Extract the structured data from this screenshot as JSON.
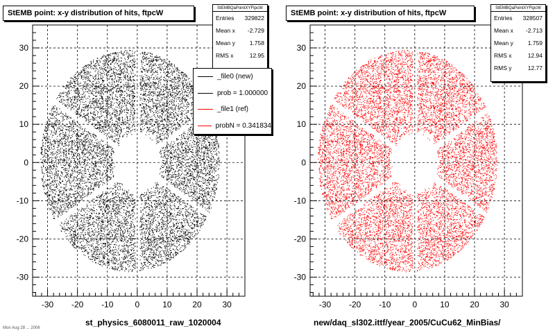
{
  "page_footer": "Mon Aug 28 ... 2006",
  "chart_data": [
    {
      "type": "scatter",
      "title": "StEMB point: x-y distribution of hits, ftpcW",
      "xlabel": "st_physics_6080011_raw_1020004",
      "ylabel": "",
      "xlim": [
        -35,
        36
      ],
      "ylim": [
        -35,
        36
      ],
      "xticks": [
        -30,
        -20,
        -10,
        0,
        10,
        20,
        30
      ],
      "yticks": [
        -30,
        -20,
        -10,
        0,
        10,
        20,
        30
      ],
      "grid": true,
      "color": "#000000",
      "distribution": {
        "outer_radius_x": 30,
        "outer_radius_y": 29,
        "inner_radius": 7.5,
        "sector_gaps_deg": [
          90,
          150,
          210,
          270,
          330,
          30
        ]
      },
      "stats": {
        "name": "StEMBQaPointXYFtpcW",
        "entries_label": "Entries",
        "entries": "329822",
        "mean_x_label": "Mean x",
        "mean_x": "-2.729",
        "mean_y_label": "Mean y",
        "mean_y": "1.758",
        "rms_x_label": "RMS x",
        "rms_x": "12.95"
      },
      "legend": {
        "position": "top-right",
        "entries": [
          {
            "label": "_file0 (new)",
            "color": "#000000"
          },
          {
            "label": "prob = 1.000000",
            "color": "#000000"
          },
          {
            "label": "_file1 (ref)",
            "color": "#ff0000"
          },
          {
            "label": "probN = 0.341834",
            "color": "#ff0000"
          }
        ]
      }
    },
    {
      "type": "scatter",
      "title": "StEMB point: x-y distribution of hits, ftpcW",
      "xlabel": "new/daq_sl302.ittf/year_2005/CuCu62_MinBias/",
      "ylabel": "",
      "xlim": [
        -35,
        36
      ],
      "ylim": [
        -35,
        36
      ],
      "xticks": [
        -30,
        -20,
        -10,
        0,
        10,
        20,
        30
      ],
      "yticks": [
        -30,
        -20,
        -10,
        0,
        10,
        20,
        30
      ],
      "grid": true,
      "color": "#ff0000",
      "distribution": {
        "outer_radius_x": 30,
        "outer_radius_y": 29,
        "inner_radius": 7.5,
        "sector_gaps_deg": [
          90,
          150,
          210,
          270,
          330,
          30
        ]
      },
      "stats": {
        "name": "StEMBQaPointXYFtpcW",
        "entries_label": "Entries",
        "entries": "328507",
        "mean_x_label": "Mean x",
        "mean_x": "-2.713",
        "mean_y_label": "Mean y",
        "mean_y": "1.759",
        "rms_x_label": "RMS x",
        "rms_x": "12.94",
        "rms_y_label": "RMS y",
        "rms_y": "12.77"
      }
    }
  ]
}
